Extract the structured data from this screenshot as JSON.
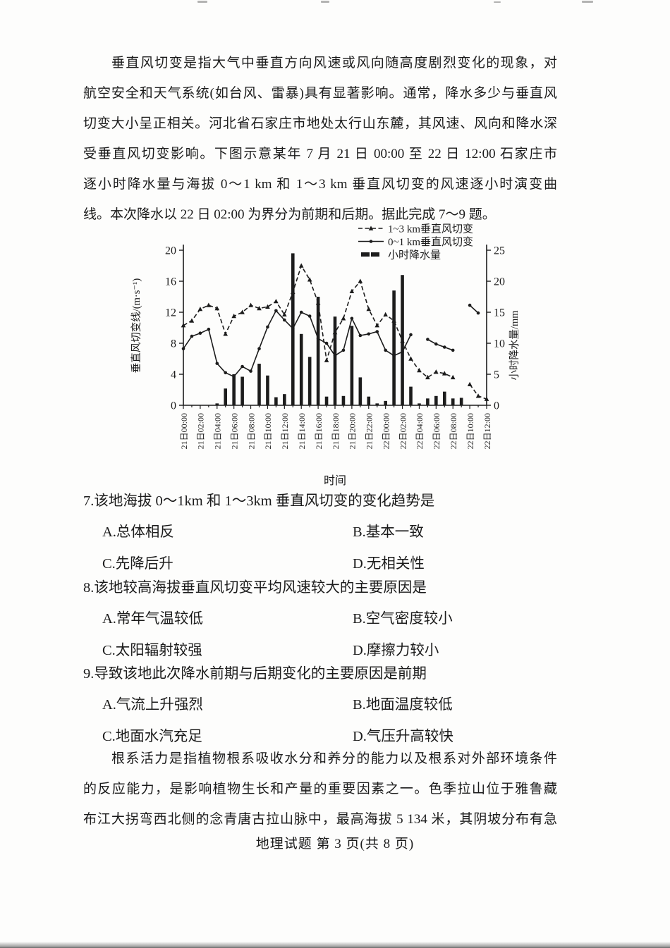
{
  "page": {
    "footer": "地理试题 第 3 页(共 8 页)"
  },
  "passage1": {
    "lines": [
      "垂直风切变是指大气中垂直方向风速或风向随高度剧烈变化的现象，对",
      "航空安全和天气系统(如台风、雷暴)具有显著影响。通常，降水多少与垂直风",
      "切变大小呈正相关。河北省石家庄市地处太行山东麓，其风速、风向和降水深",
      "受垂直风切变影响。下图示意某年 7 月 21 日 00:00 至 22 日 12:00 石家庄市",
      "逐小时降水量与海拔 0～1 km 和 1～3 km 垂直风切变的风速逐小时演变曲",
      "线。本次降水以 22 日 02:00 为界分为前期和后期。据此完成 7～9 题。"
    ]
  },
  "passage2": {
    "lines": [
      "根系活力是指植物根系吸收水分和养分的能力以及根系对外部环境条件",
      "的反应能力，是影响植物生长和产量的重要因素之一。色季拉山位于雅鲁藏",
      "布江大拐弯西北侧的念青唐古拉山脉中，最高海拔 5 134 米，其阴坡分布有急"
    ]
  },
  "questions": [
    {
      "number": "7.",
      "stem": "该地海拔 0～1km 和 1～3km 垂直风切变的变化趋势是",
      "options": [
        "A.总体相反",
        "B.基本一致",
        "C.先降后升",
        "D.无相关性"
      ]
    },
    {
      "number": "8.",
      "stem": "该地较高海拔垂直风切变平均风速较大的主要原因是",
      "options": [
        "A.常年气温较低",
        "B.空气密度较小",
        "C.太阳辐射较强",
        "D.摩擦力较小"
      ]
    },
    {
      "number": "9.",
      "stem": "导致该地此次降水前期与后期变化的主要原因是前期",
      "options": [
        "A.气流上升强烈",
        "B.地面温度较低",
        "C.地面水汽充足",
        "D.气压升高较快"
      ]
    }
  ],
  "chart_data": {
    "type": "bar-line-composite",
    "x_axis_label": "时间",
    "x_categories": [
      "21日00:00",
      "21日02:00",
      "21日04:00",
      "21日06:00",
      "21日08:00",
      "21日10:00",
      "21日12:00",
      "21日14:00",
      "21日16:00",
      "21日18:00",
      "21日20:00",
      "21日22:00",
      "22日00:00",
      "22日02:00",
      "22日04:00",
      "22日06:00",
      "22日08:00",
      "22日10:00",
      "22日12:00"
    ],
    "hours_total": 37,
    "left_axis": {
      "label": "垂直风切变线/(m·s⁻¹)",
      "ticks": [
        0,
        4,
        8,
        12,
        16,
        20
      ],
      "range": [
        0,
        20
      ]
    },
    "right_axis": {
      "label": "小时降水量/mm",
      "ticks": [
        0,
        5,
        10,
        15,
        20,
        25
      ],
      "range": [
        0,
        25
      ]
    },
    "grid": "off",
    "legend_position": "top-right-inside",
    "ink_color": "#1c1c1c",
    "series": [
      {
        "name": "1~3 km垂直风切变",
        "type": "line",
        "style": "dashed",
        "marker": "triangle",
        "axis": "left",
        "values": [
          10.3,
          10.9,
          12.4,
          12.9,
          12.5,
          9.2,
          11.5,
          12.0,
          12.9,
          12.5,
          12.7,
          13.4,
          11.7,
          14.6,
          18.0,
          16.2,
          13.2,
          5.8,
          9.4,
          11.2,
          14.7,
          16.0,
          12.4,
          10.3,
          11.7,
          10.9,
          8.3,
          6.0,
          4.5,
          3.6,
          4.3,
          4.1,
          3.6,
          null,
          2.7,
          1.2,
          0.8
        ]
      },
      {
        "name": "0~1 km垂直风切变",
        "type": "line",
        "style": "solid",
        "marker": "dot",
        "axis": "left",
        "values": [
          7.3,
          8.9,
          9.3,
          9.8,
          5.4,
          4.2,
          3.7,
          5.0,
          4.4,
          7.3,
          10.1,
          12.2,
          11.0,
          9.9,
          12.0,
          11.5,
          8.6,
          8.0,
          6.4,
          7.1,
          11.2,
          9.0,
          9.2,
          9.5,
          7.1,
          6.4,
          6.9,
          9.1,
          null,
          8.5,
          7.9,
          7.5,
          7.1,
          null,
          12.9,
          11.9,
          null
        ]
      },
      {
        "name": "小时降水量",
        "type": "bar",
        "axis": "right",
        "values": [
          0,
          0,
          0,
          0,
          0.3,
          2.7,
          5.0,
          4.6,
          0,
          6.7,
          4.8,
          1.3,
          1.8,
          24.5,
          11.5,
          7.8,
          17.5,
          1.4,
          14.3,
          1.5,
          12.8,
          4.5,
          1.4,
          0.3,
          0.7,
          18.5,
          21.0,
          3.0,
          0.3,
          1.1,
          1.5,
          2.2,
          1.1,
          1.2,
          0,
          0,
          0
        ]
      }
    ]
  }
}
